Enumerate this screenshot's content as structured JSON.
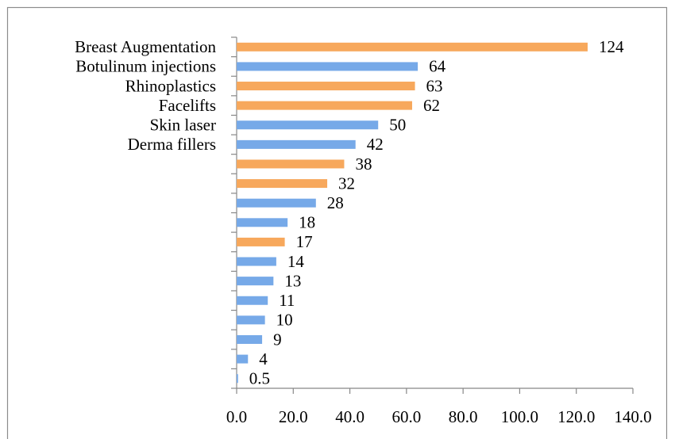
{
  "chart_data": {
    "type": "hbar",
    "categories": [
      "Breast Augmentation",
      "Botulinum injections",
      "Rhinoplastics",
      "Facelifts",
      "Skin laser",
      "Derma fillers",
      null,
      null,
      null,
      null,
      null,
      null,
      null,
      null,
      null,
      null,
      null,
      null
    ],
    "values": [
      124,
      64,
      63,
      62,
      50,
      42,
      38,
      32,
      28,
      18,
      17,
      14,
      13,
      11,
      10,
      9,
      4,
      0.5
    ],
    "colors": [
      "#f7a85c",
      "#76a9e8",
      "#f7a85c",
      "#f7a85c",
      "#76a9e8",
      "#76a9e8",
      "#f7a85c",
      "#f7a85c",
      "#76a9e8",
      "#76a9e8",
      "#f7a85c",
      "#76a9e8",
      "#76a9e8",
      "#76a9e8",
      "#76a9e8",
      "#76a9e8",
      "#76a9e8",
      "#76a9e8"
    ],
    "xlim": [
      0,
      140
    ],
    "xticks": [
      {
        "value": 0,
        "label": "0.0"
      },
      {
        "value": 20,
        "label": "20.0"
      },
      {
        "value": 40,
        "label": "40.0"
      },
      {
        "value": 60,
        "label": "60.0"
      },
      {
        "value": 80,
        "label": "80.0"
      },
      {
        "value": 100,
        "label": "100.0"
      },
      {
        "value": 120,
        "label": "120.0"
      },
      {
        "value": 140,
        "label": "140.0"
      }
    ],
    "grid": false
  }
}
